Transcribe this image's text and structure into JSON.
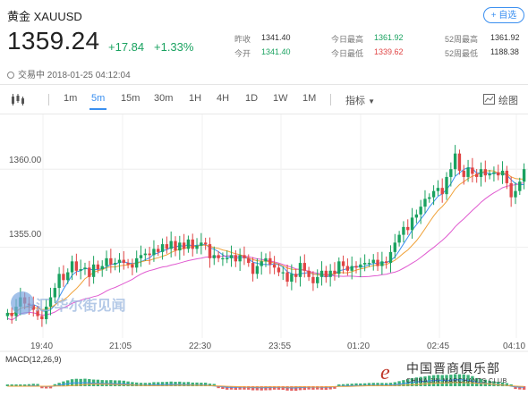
{
  "header": {
    "title": "黄金 XAUUSD",
    "follow_label": "+ 自选",
    "price": "1359.24",
    "change": "+17.84",
    "change_pct": "+1.33%",
    "status": "交易中 2018-01-25 04:12:04"
  },
  "stats": [
    {
      "label": "昨收",
      "value": "1341.40"
    },
    {
      "label": "今开",
      "value": "1341.40"
    },
    {
      "label": "今日最高",
      "value": "1361.92"
    },
    {
      "label": "今日最低",
      "value": "1339.62"
    },
    {
      "label": "52周最高",
      "value": "1361.92"
    },
    {
      "label": "52周最低",
      "value": "1188.38"
    }
  ],
  "toolbar": {
    "periods": [
      "1m",
      "5m",
      "15m",
      "30m",
      "1H",
      "4H",
      "1D",
      "1W",
      "1M"
    ],
    "active": "5m",
    "indicator_label": "指标",
    "draw_label": "绘图"
  },
  "chart": {
    "y_labels": [
      "1360.00",
      "1355.00"
    ],
    "x_labels": [
      "19:40",
      "21:05",
      "22:30",
      "23:55",
      "01:20",
      "02:45",
      "04:10"
    ],
    "macd_label": "MACD(12,26,9)"
  },
  "chart_data": {
    "type": "candlestick",
    "x_axis_labels": [
      "19:40",
      "21:05",
      "22:30",
      "23:55",
      "01:20",
      "02:45",
      "04:10"
    ],
    "y_axis_labels": [
      "1360.00",
      "1355.00"
    ],
    "ylim": [
      1349.2,
      1363.5
    ],
    "closes": [
      1350.8,
      1350.6,
      1351.2,
      1351.8,
      1351.4,
      1351.3,
      1351.0,
      1350.6,
      1350.4,
      1351.2,
      1351.8,
      1352.4,
      1353.3,
      1352.9,
      1353.4,
      1354.1,
      1353.5,
      1353.6,
      1353.7,
      1353.1,
      1353.9,
      1353.6,
      1353.8,
      1354.3,
      1353.9,
      1354.0,
      1354.2,
      1354.0,
      1353.9,
      1353.7,
      1354.3,
      1354.5,
      1354.6,
      1354.5,
      1354.9,
      1354.7,
      1355.2,
      1354.9,
      1355.4,
      1354.8,
      1355.3,
      1354.9,
      1355.5,
      1354.9,
      1355.1,
      1355.3,
      1355.2,
      1354.3,
      1354.5,
      1354.3,
      1354.3,
      1354.3,
      1354.5,
      1354.1,
      1354.5,
      1354.3,
      1354.0,
      1353.3,
      1353.8,
      1354.1,
      1354.3,
      1353.9,
      1353.7,
      1353.4,
      1353.4,
      1352.8,
      1353.3,
      1353.1,
      1354.0,
      1353.5,
      1353.1,
      1352.7,
      1353.1,
      1353.5,
      1353.1,
      1353.5,
      1353.3,
      1354.1,
      1353.8,
      1353.5,
      1353.8,
      1353.7,
      1353.9,
      1354.0,
      1354.0,
      1354.2,
      1353.8,
      1354.1,
      1354.0,
      1354.7,
      1355.3,
      1355.8,
      1356.3,
      1356.1,
      1356.9,
      1357.1,
      1357.6,
      1358.1,
      1358.2,
      1358.6,
      1358.8,
      1358.4,
      1359.5,
      1360.0,
      1361.0,
      1359.9,
      1359.5,
      1360.1,
      1359.7,
      1359.5,
      1360.0,
      1359.6,
      1359.7,
      1359.8,
      1359.6,
      1359.9,
      1359.1,
      1358.2,
      1358.6,
      1359.2,
      1360.0
    ],
    "series": [
      {
        "name": "MA fast (blue)",
        "color": "#3a8ff0"
      },
      {
        "name": "MA mid (orange)",
        "color": "#f0a23a"
      },
      {
        "name": "MA slow (pink)",
        "color": "#e05ad0"
      }
    ],
    "up_color": "#1aa260",
    "down_color": "#e04545"
  },
  "watermarks": {
    "left": "汇 华尔街见闻",
    "right_cn": "中国晋商俱乐部",
    "right_en": "CHINA JIN MARCHANTS CLUB",
    "right_logo": "e"
  }
}
